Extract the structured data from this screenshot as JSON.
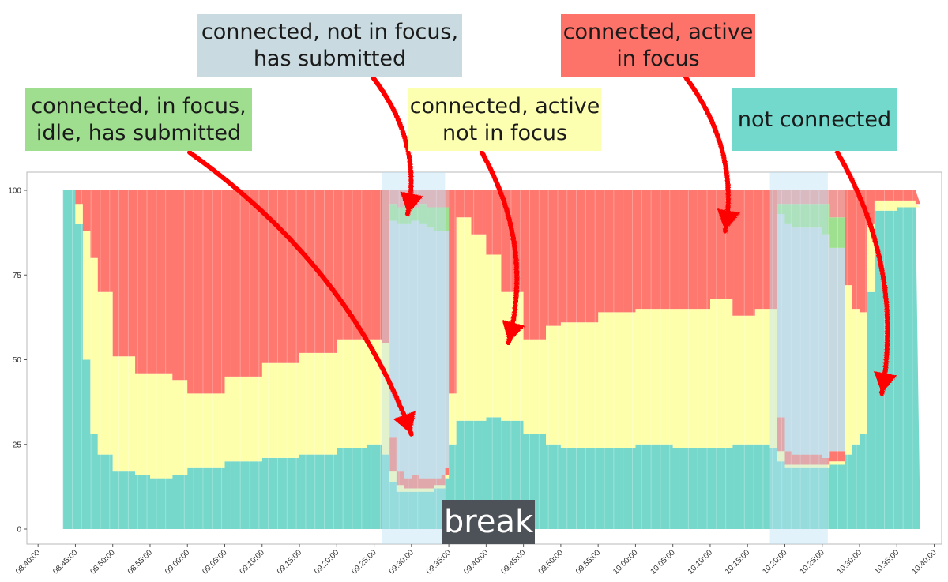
{
  "chart_data": {
    "type": "area",
    "stacked": true,
    "title": "",
    "xlabel": "",
    "ylabel": "",
    "ylim": [
      0,
      100
    ],
    "y_ticks": [
      "0",
      "25",
      "50",
      "75",
      "100"
    ],
    "x_ticks": [
      "08:40:00",
      "08:45:00",
      "08:50:00",
      "08:55:00",
      "09:00:00",
      "09:05:00",
      "09:10:00",
      "09:15:00",
      "09:20:00",
      "09:25:00",
      "09:30:00",
      "09:35:00",
      "09:40:00",
      "09:45:00",
      "09:50:00",
      "09:55:00",
      "10:00:00",
      "10:05:00",
      "10:10:00",
      "10:15:00",
      "10:20:00",
      "10:25:00",
      "10:30:00",
      "10:35:00",
      "10:40:00"
    ],
    "x_domain": [
      "08:38:30",
      "10:41:00"
    ],
    "grid": false,
    "highlight_bands": [
      {
        "from": "09:26:00",
        "to": "09:34:30"
      },
      {
        "from": "10:18:00",
        "to": "10:25:45"
      }
    ],
    "times": [
      "08:43:20",
      "08:44:00",
      "08:45:00",
      "08:46:00",
      "08:47:00",
      "08:48:00",
      "08:50:00",
      "08:53:00",
      "08:55:00",
      "08:58:00",
      "09:00:00",
      "09:05:00",
      "09:10:00",
      "09:15:00",
      "09:20:00",
      "09:24:00",
      "09:26:00",
      "09:27:00",
      "09:28:00",
      "09:29:00",
      "09:30:00",
      "09:31:00",
      "09:32:00",
      "09:33:00",
      "09:34:00",
      "09:34:30",
      "09:35:00",
      "09:36:00",
      "09:38:00",
      "09:40:00",
      "09:42:00",
      "09:45:00",
      "09:48:00",
      "09:50:00",
      "09:55:00",
      "10:00:00",
      "10:05:00",
      "10:10:00",
      "10:13:00",
      "10:16:00",
      "10:18:00",
      "10:19:00",
      "10:20:00",
      "10:21:00",
      "10:22:00",
      "10:23:00",
      "10:24:00",
      "10:25:00",
      "10:26:00",
      "10:28:00",
      "10:29:00",
      "10:30:00",
      "10:31:00",
      "10:32:00",
      "10:35:00",
      "10:37:30"
    ],
    "series": [
      {
        "name": "not connected",
        "color": "#76d8cb",
        "values": [
          100,
          100,
          90,
          50,
          28,
          22,
          17,
          16,
          15,
          16,
          18,
          20,
          21,
          22,
          24,
          25,
          22,
          14,
          11,
          11,
          11,
          11,
          11,
          12,
          12,
          15,
          25,
          32,
          32,
          33,
          32,
          28,
          25,
          24,
          24,
          25,
          24,
          24,
          25,
          25,
          24,
          20,
          18,
          18,
          18,
          18,
          18,
          18,
          19,
          22,
          25,
          28,
          70,
          94,
          95,
          95
        ]
      },
      {
        "name": "connected, active not in focus",
        "color": "#fdffab",
        "values": [
          0,
          0,
          6,
          38,
          52,
          48,
          34,
          30,
          31,
          28,
          22,
          25,
          28,
          30,
          32,
          31,
          33,
          3,
          2,
          1,
          1,
          1,
          1,
          1,
          1,
          1,
          15,
          60,
          55,
          48,
          38,
          28,
          35,
          37,
          40,
          40,
          41,
          44,
          38,
          40,
          41,
          3,
          1,
          1,
          1,
          1,
          1,
          1,
          1,
          50,
          40,
          36,
          20,
          3,
          2,
          1
        ]
      },
      {
        "name": "connected, active in focus",
        "color": "#fe786f",
        "values": [
          0,
          0,
          4,
          12,
          20,
          30,
          49,
          54,
          54,
          56,
          60,
          55,
          51,
          48,
          44,
          44,
          45,
          10,
          4,
          3,
          4,
          3,
          3,
          2,
          3,
          2,
          60,
          8,
          13,
          19,
          30,
          44,
          40,
          39,
          36,
          35,
          35,
          32,
          37,
          35,
          35,
          10,
          4,
          3,
          3,
          3,
          3,
          2,
          3,
          28,
          35,
          36,
          10,
          3,
          3,
          4
        ]
      },
      {
        "name": "connected, not in focus, has submitted",
        "color": "#c6d9e0",
        "values": [
          0,
          0,
          0,
          0,
          0,
          0,
          0,
          0,
          0,
          0,
          0,
          0,
          0,
          0,
          0,
          0,
          0,
          64,
          73,
          75,
          75,
          75,
          74,
          73,
          72,
          70,
          0,
          0,
          0,
          0,
          0,
          0,
          0,
          0,
          0,
          0,
          0,
          0,
          0,
          0,
          0,
          60,
          67,
          67,
          67,
          67,
          67,
          66,
          60,
          0,
          0,
          0,
          0,
          0,
          0,
          0
        ]
      },
      {
        "name": "connected, in focus, idle, has submitted",
        "color": "#9fe090",
        "values": [
          0,
          0,
          0,
          0,
          0,
          0,
          0,
          0,
          0,
          0,
          0,
          0,
          0,
          0,
          0,
          0,
          0,
          5,
          5,
          6,
          4,
          6,
          6,
          7,
          7,
          7,
          0,
          0,
          0,
          0,
          0,
          0,
          0,
          0,
          0,
          0,
          0,
          0,
          0,
          0,
          0,
          3,
          6,
          7,
          7,
          7,
          7,
          9,
          9,
          0,
          0,
          0,
          0,
          0,
          0,
          0
        ]
      },
      {
        "name": "other",
        "color": "#f09a97",
        "values": [
          0,
          0,
          0,
          0,
          0,
          0,
          0,
          0,
          0,
          0,
          0,
          0,
          0,
          0,
          0,
          0,
          0,
          4,
          5,
          4,
          5,
          4,
          5,
          5,
          5,
          5,
          0,
          0,
          0,
          0,
          0,
          0,
          0,
          0,
          0,
          0,
          0,
          0,
          0,
          0,
          0,
          4,
          4,
          4,
          4,
          4,
          4,
          4,
          8,
          0,
          0,
          0,
          0,
          0,
          0,
          0
        ]
      }
    ],
    "annotations": [
      {
        "text": "connected, not in focus,\nhas submitted",
        "color": "#c9dbe0",
        "target_time": "09:29:30",
        "target_value": 93
      },
      {
        "text": "connected, active\nin focus",
        "color": "#fd7269",
        "target_time": "10:12:00",
        "target_value": 88
      },
      {
        "text": "connected, in focus,\nidle, has submitted",
        "color": "#9fde8f",
        "target_time": "09:30:00",
        "target_value": 28
      },
      {
        "text": "connected, active\nnot in focus",
        "color": "#fcffb0",
        "target_time": "09:43:00",
        "target_value": 55
      },
      {
        "text": "not connected",
        "color": "#72d9cc",
        "target_time": "10:33:00",
        "target_value": 40
      }
    ],
    "break_label": "break"
  }
}
